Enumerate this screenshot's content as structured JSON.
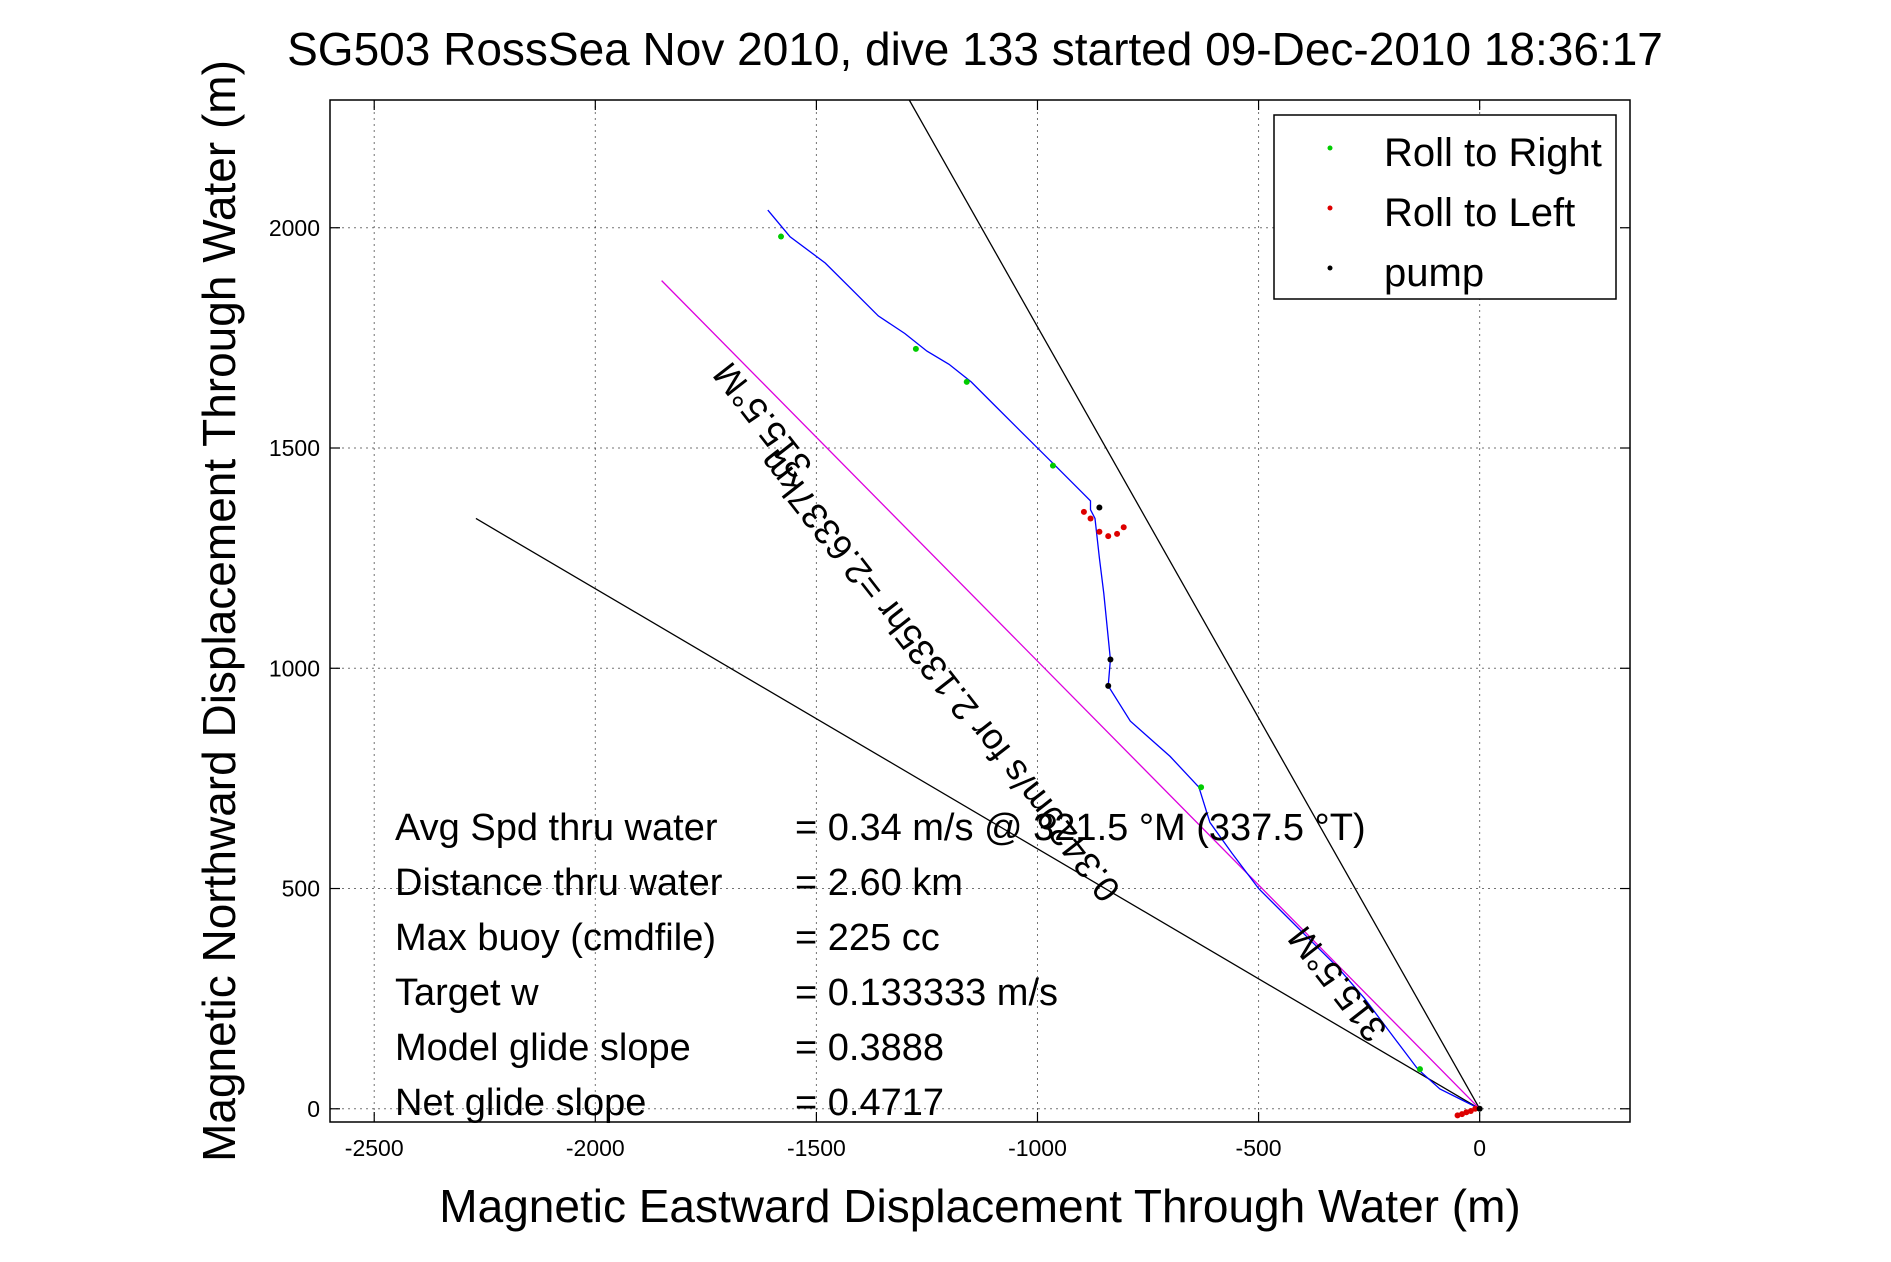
{
  "chart_data": {
    "type": "scatter",
    "title": "SG503 RossSea Nov 2010, dive 133 started 09-Dec-2010 18:36:17",
    "xlabel": "Magnetic Eastward Displacement Through Water (m)",
    "ylabel": "Magnetic Northward Displacement Through Water (m)",
    "xlim": [
      -2600,
      340
    ],
    "ylim": [
      -30,
      2290
    ],
    "x_ticks": [
      -2500,
      -2000,
      -1500,
      -1000,
      -500,
      0
    ],
    "y_ticks": [
      0,
      500,
      1000,
      1500,
      2000
    ],
    "x_tick_labels": [
      "-2500",
      "-2000",
      "-1500",
      "-1000",
      "-500",
      "0"
    ],
    "y_tick_labels": [
      "0",
      "500",
      "1000",
      "1500",
      "2000"
    ],
    "grid": true,
    "legend_position": "top-right",
    "legend": [
      {
        "label": "Roll to Right",
        "color": "#00cc00"
      },
      {
        "label": "Roll to Left",
        "color": "#dd0000"
      },
      {
        "label": "pump",
        "color": "#000000"
      }
    ],
    "track": {
      "name": "",
      "color": "#0000ff",
      "points": [
        [
          0,
          0
        ],
        [
          -40,
          20
        ],
        [
          -90,
          45
        ],
        [
          -140,
          90
        ],
        [
          -200,
          170
        ],
        [
          -260,
          250
        ],
        [
          -320,
          320
        ],
        [
          -380,
          380
        ],
        [
          -440,
          440
        ],
        [
          -500,
          500
        ],
        [
          -560,
          580
        ],
        [
          -610,
          650
        ],
        [
          -635,
          730
        ],
        [
          -700,
          800
        ],
        [
          -790,
          880
        ],
        [
          -840,
          960
        ],
        [
          -835,
          1020
        ],
        [
          -850,
          1170
        ],
        [
          -860,
          1250
        ],
        [
          -870,
          1340
        ],
        [
          -880,
          1360
        ],
        [
          -880,
          1380
        ],
        [
          -900,
          1400
        ],
        [
          -960,
          1460
        ],
        [
          -1040,
          1540
        ],
        [
          -1100,
          1600
        ],
        [
          -1150,
          1650
        ],
        [
          -1200,
          1690
        ],
        [
          -1250,
          1720
        ],
        [
          -1300,
          1760
        ],
        [
          -1360,
          1800
        ],
        [
          -1420,
          1860
        ],
        [
          -1480,
          1920
        ],
        [
          -1560,
          1980
        ],
        [
          -1610,
          2040
        ]
      ]
    },
    "roll_right_points": [
      [
        -135,
        90
      ],
      [
        -630,
        730
      ],
      [
        -965,
        1460
      ],
      [
        -1160,
        1650
      ],
      [
        -1275,
        1725
      ],
      [
        -1580,
        1980
      ]
    ],
    "roll_left_points": [
      [
        -50,
        -15
      ],
      [
        -40,
        -12
      ],
      [
        -30,
        -8
      ],
      [
        -20,
        -5
      ],
      [
        -10,
        0
      ],
      [
        -860,
        1310
      ],
      [
        -840,
        1300
      ],
      [
        -820,
        1305
      ],
      [
        -805,
        1320
      ],
      [
        -880,
        1340
      ],
      [
        -895,
        1355
      ]
    ],
    "pump_points": [
      [
        0,
        0
      ],
      [
        -860,
        1365
      ],
      [
        -840,
        960
      ],
      [
        -835,
        1020
      ]
    ],
    "lines": [
      {
        "color": "#000000",
        "points": [
          [
            0,
            0
          ],
          [
            -1290,
            2290
          ]
        ]
      },
      {
        "color": "#000000",
        "points": [
          [
            0,
            0
          ],
          [
            -2270,
            1340
          ]
        ]
      },
      {
        "color": "#dd00dd",
        "points": [
          [
            0,
            0
          ],
          [
            -1850,
            1880
          ]
        ]
      }
    ],
    "line_annotations": [
      {
        "text": "315.5°M",
        "x": -1600,
        "y": 1580
      },
      {
        "text": "0.3429m/s for 2.1335hr =2.6337km",
        "x": -1200,
        "y": 1000
      },
      {
        "text": "315.5°M",
        "x": -300,
        "y": 300
      }
    ],
    "stats": [
      {
        "label": "Avg Spd thru water",
        "value": "=  0.34 m/s @ 321.5 °M (337.5 °T)"
      },
      {
        "label": "Distance thru water",
        "value": "=  2.60 km"
      },
      {
        "label": "Max buoy (cmdfile)",
        "value": "= 225 cc"
      },
      {
        "label": "Target w",
        "value": "= 0.133333 m/s"
      },
      {
        "label": "Model glide slope",
        "value": "= 0.3888"
      },
      {
        "label": "Net glide slope",
        "value": "= 0.4717"
      }
    ]
  }
}
